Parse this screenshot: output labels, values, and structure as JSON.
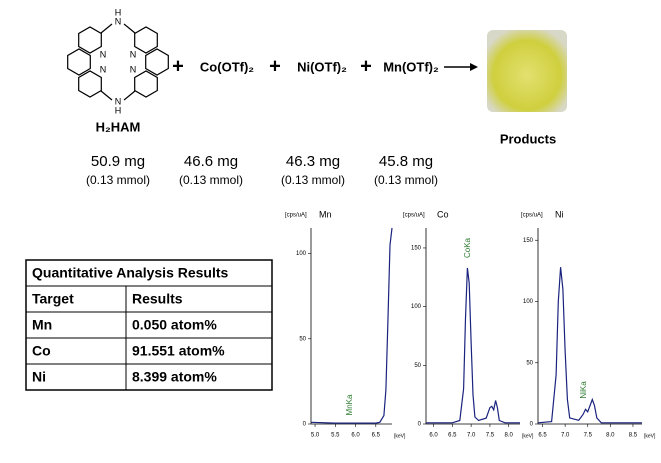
{
  "scheme": {
    "ligand": "H₂HAM",
    "atoms": {
      "n": "N",
      "h": "H"
    },
    "plus": "+",
    "reagents": [
      "Co(OTf)₂",
      "Ni(OTf)₂",
      "Mn(OTf)₂"
    ],
    "product": "Products",
    "amounts": [
      {
        "mass": "50.9 mg",
        "mol": "(0.13 mmol)"
      },
      {
        "mass": "46.6 mg",
        "mol": "(0.13 mmol)"
      },
      {
        "mass": "46.3 mg",
        "mol": "(0.13 mmol)"
      },
      {
        "mass": "45.8 mg",
        "mol": "(0.13 mmol)"
      }
    ]
  },
  "table": {
    "title": "Quantitative Analysis Results",
    "header": [
      "Target",
      "Results"
    ],
    "rows": [
      [
        "Mn",
        "0.050 atom%"
      ],
      [
        "Co",
        "91.551 atom%"
      ],
      [
        "Ni",
        "8.399 atom%"
      ]
    ]
  },
  "chart_data": [
    {
      "type": "line",
      "title": "Mn",
      "y_label": "[cps/uA]",
      "x_label": "[keV]",
      "annotation": "MnKa",
      "color": "#1a237e",
      "x": [
        4.9,
        5.5,
        6.0,
        6.5,
        6.6,
        6.7,
        6.75,
        6.8,
        6.85,
        6.9
      ],
      "values": [
        1,
        0.5,
        0.5,
        0.5,
        1,
        5,
        20,
        60,
        105,
        115
      ],
      "xlim": [
        4.9,
        6.9
      ],
      "ylim": [
        0,
        115
      ],
      "yticks": [
        0,
        50,
        100
      ],
      "xticks": [
        {
          "value": 5,
          "label": "5.0"
        },
        5.5,
        {
          "value": 6,
          "label": "6.0"
        },
        6.5
      ]
    },
    {
      "type": "line",
      "title": "Co",
      "y_label": "[cps/uA]",
      "x_label": "[keV]",
      "annotation": "CoKa",
      "color": "#1a237e",
      "x": [
        5.8,
        6.5,
        6.7,
        6.8,
        6.85,
        6.9,
        6.95,
        7.0,
        7.05,
        7.1,
        7.2,
        7.4,
        7.5,
        7.55,
        7.6,
        7.65,
        7.7,
        7.75,
        7.9,
        8.3
      ],
      "values": [
        1,
        1,
        3,
        30,
        90,
        133,
        120,
        70,
        25,
        6,
        3,
        5,
        14,
        15,
        12,
        20,
        14,
        3,
        1,
        1
      ],
      "xlim": [
        5.8,
        8.3
      ],
      "ylim": [
        0,
        167
      ],
      "yticks": [
        0,
        50,
        100,
        150
      ],
      "xticks": [
        {
          "value": 6,
          "label": "6.0"
        },
        6.5,
        {
          "value": 7,
          "label": "7.0"
        },
        7.5,
        {
          "value": 8,
          "label": "8.0"
        }
      ]
    },
    {
      "type": "line",
      "title": "Ni",
      "y_label": "[cps/uA]",
      "x_label": "[keV]",
      "annotation": "NiKa",
      "color": "#1a237e",
      "x": [
        6.4,
        6.7,
        6.8,
        6.85,
        6.9,
        6.95,
        7.0,
        7.05,
        7.1,
        7.3,
        7.4,
        7.45,
        7.5,
        7.6,
        7.65,
        7.7,
        7.8,
        8.7
      ],
      "values": [
        1,
        2,
        40,
        100,
        128,
        110,
        60,
        20,
        5,
        3,
        8,
        12,
        10,
        20,
        15,
        5,
        1,
        1
      ],
      "xlim": [
        6.4,
        8.7
      ],
      "ylim": [
        0,
        160
      ],
      "yticks": [
        0,
        50,
        100,
        150
      ],
      "xticks": [
        6.5,
        {
          "value": 7,
          "label": "7.0"
        },
        7.5,
        {
          "value": 8,
          "label": "8.0"
        },
        8.5
      ]
    }
  ]
}
